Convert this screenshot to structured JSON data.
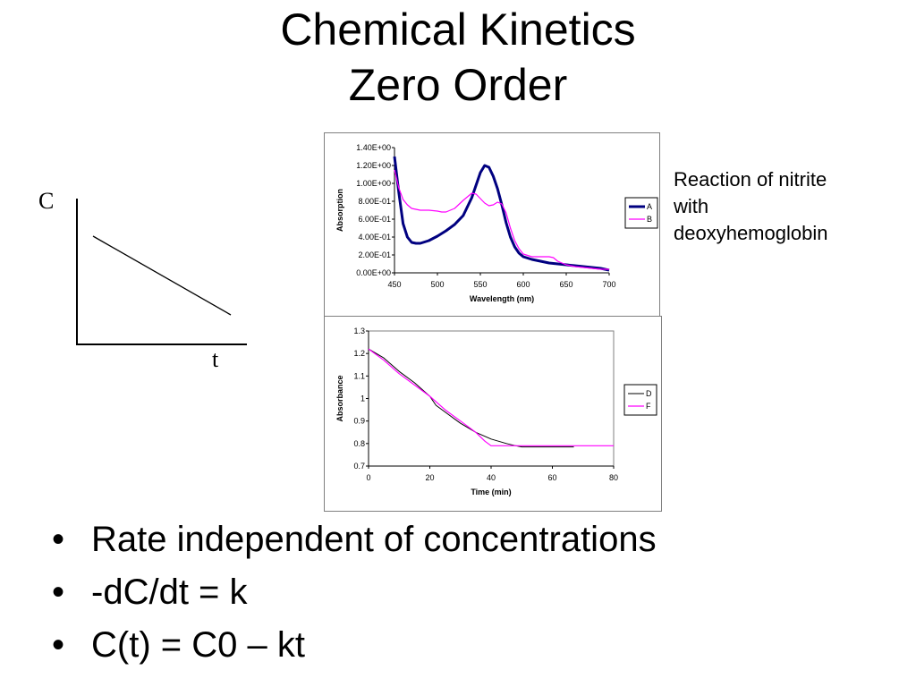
{
  "title": {
    "line1": "Chemical Kinetics",
    "line2": "Zero Order"
  },
  "schematic": {
    "y_label": "C",
    "x_label": "t"
  },
  "caption": {
    "line1": "Reaction of nitrite",
    "line2": "with",
    "line3": "deoxyhemoglobin"
  },
  "bullets": [
    {
      "marker": "•",
      "text": "Rate independent of concentrations"
    },
    {
      "marker": "•",
      "text": "-dC/dt = k"
    },
    {
      "marker": "•",
      "text": "C(t) = C0 – kt"
    }
  ],
  "chart_data": [
    {
      "type": "line",
      "title": "",
      "xlabel": "Wavelength (nm)",
      "ylabel": "Absorption",
      "xlim": [
        450,
        700
      ],
      "ylim": [
        0,
        1.4
      ],
      "x_ticks": [
        450,
        500,
        550,
        600,
        650,
        700
      ],
      "x_tick_labels": [
        "450",
        "500",
        "550",
        "600",
        "650",
        "700"
      ],
      "y_ticks": [
        0,
        0.2,
        0.4,
        0.6,
        0.8,
        1.0,
        1.2,
        1.4
      ],
      "y_tick_labels": [
        "0.00E+00",
        "2.00E-01",
        "4.00E-01",
        "6.00E-01",
        "8.00E-01",
        "1.00E+00",
        "1.20E+00",
        "1.40E+00"
      ],
      "grid": false,
      "legend": "right",
      "series": [
        {
          "name": "A",
          "color": "#000080",
          "x": [
            450,
            455,
            460,
            465,
            470,
            475,
            480,
            490,
            500,
            510,
            520,
            530,
            540,
            545,
            550,
            555,
            560,
            565,
            570,
            575,
            580,
            585,
            590,
            595,
            600,
            610,
            620,
            630,
            640,
            650,
            660,
            670,
            680,
            690,
            700
          ],
          "y": [
            1.3,
            0.9,
            0.55,
            0.4,
            0.34,
            0.33,
            0.33,
            0.36,
            0.41,
            0.47,
            0.54,
            0.64,
            0.84,
            0.98,
            1.12,
            1.2,
            1.18,
            1.08,
            0.94,
            0.76,
            0.56,
            0.4,
            0.29,
            0.22,
            0.18,
            0.15,
            0.13,
            0.11,
            0.1,
            0.09,
            0.08,
            0.07,
            0.06,
            0.05,
            0.03
          ]
        },
        {
          "name": "B",
          "color": "#ff00ff",
          "x": [
            450,
            455,
            460,
            465,
            470,
            480,
            490,
            500,
            505,
            510,
            520,
            530,
            540,
            545,
            550,
            555,
            560,
            565,
            570,
            575,
            580,
            585,
            590,
            595,
            600,
            610,
            620,
            630,
            635,
            640,
            650,
            660,
            670,
            680,
            690,
            700
          ],
          "y": [
            1.15,
            0.95,
            0.82,
            0.76,
            0.72,
            0.7,
            0.7,
            0.69,
            0.68,
            0.68,
            0.72,
            0.81,
            0.89,
            0.88,
            0.83,
            0.78,
            0.75,
            0.76,
            0.79,
            0.77,
            0.67,
            0.5,
            0.36,
            0.27,
            0.21,
            0.18,
            0.18,
            0.18,
            0.17,
            0.13,
            0.09,
            0.07,
            0.06,
            0.05,
            0.04,
            0.04
          ]
        }
      ]
    },
    {
      "type": "line",
      "title": "",
      "xlabel": "Time (min)",
      "ylabel": "Absorbance",
      "xlim": [
        0,
        80
      ],
      "ylim": [
        0.7,
        1.3
      ],
      "x_ticks": [
        0,
        20,
        40,
        60,
        80
      ],
      "x_tick_labels": [
        "0",
        "20",
        "40",
        "60",
        "80"
      ],
      "y_ticks": [
        0.7,
        0.8,
        0.9,
        1.0,
        1.1,
        1.2,
        1.3
      ],
      "y_tick_labels": [
        "0.7",
        "0.8",
        "0.9",
        "1",
        "1.1",
        "1.2",
        "1.3"
      ],
      "grid": false,
      "legend": "right",
      "series": [
        {
          "name": "D",
          "color": "#000000",
          "x": [
            0,
            5,
            10,
            15,
            20,
            22,
            25,
            30,
            35,
            40,
            45,
            48,
            50,
            55,
            60,
            67
          ],
          "y": [
            1.22,
            1.18,
            1.12,
            1.07,
            1.01,
            0.97,
            0.94,
            0.89,
            0.85,
            0.82,
            0.8,
            0.79,
            0.785,
            0.785,
            0.785,
            0.785
          ]
        },
        {
          "name": "F",
          "color": "#ff00ff",
          "x": [
            0,
            5,
            10,
            15,
            20,
            25,
            30,
            35,
            38,
            40,
            45,
            50,
            60,
            70,
            80
          ],
          "y": [
            1.22,
            1.17,
            1.11,
            1.06,
            1.01,
            0.95,
            0.9,
            0.85,
            0.81,
            0.79,
            0.79,
            0.79,
            0.79,
            0.79,
            0.79
          ]
        }
      ]
    }
  ]
}
